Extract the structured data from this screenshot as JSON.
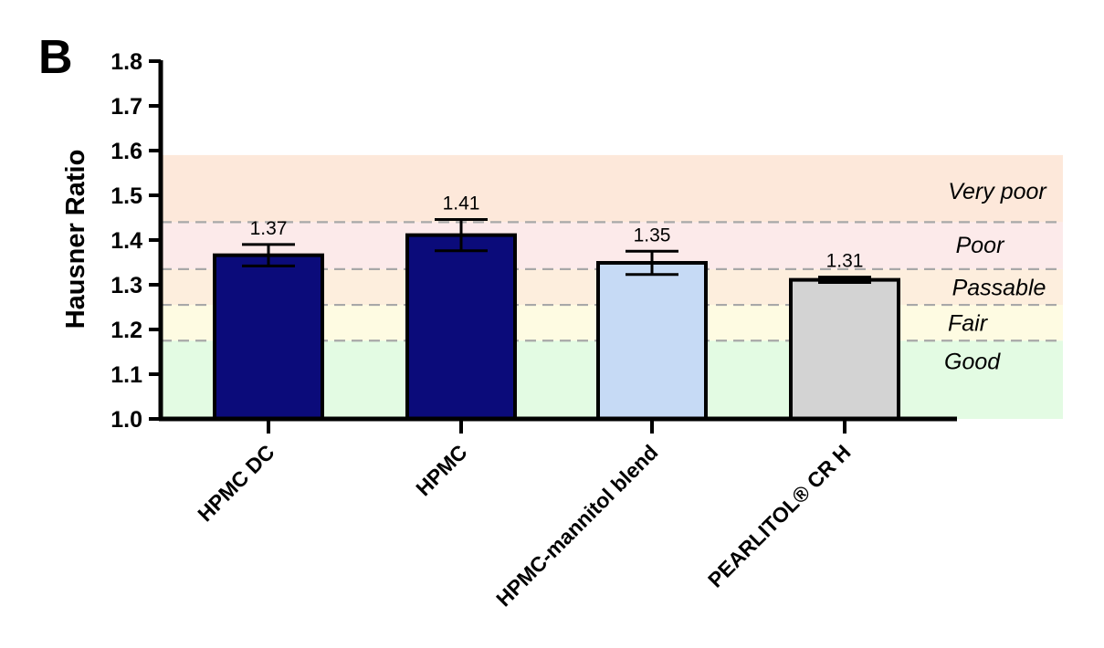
{
  "panel_label": "B",
  "chart_data": {
    "type": "bar",
    "ylabel": "Hausner Ratio",
    "xlabel": "",
    "ylim": [
      1.0,
      1.8
    ],
    "yticks": [
      1.0,
      1.1,
      1.2,
      1.3,
      1.4,
      1.5,
      1.6,
      1.7,
      1.8
    ],
    "ytick_labels": [
      "1.0",
      "1.1",
      "1.2",
      "1.3",
      "1.4",
      "1.5",
      "1.6",
      "1.7",
      "1.8"
    ],
    "categories": [
      "HPMC DC",
      "HPMC",
      "HPMC-mannitol blend",
      "PEARLITOL® CR H"
    ],
    "values": [
      1.366,
      1.411,
      1.349,
      1.311
    ],
    "errors": [
      0.024,
      0.035,
      0.026,
      0.006
    ],
    "data_labels": [
      "1.37",
      "1.41",
      "1.35",
      "1.31"
    ],
    "bar_colors": [
      "#0b0b7a",
      "#0b0b7a",
      "#c6daf5",
      "#d3d3d3"
    ],
    "zones": [
      {
        "label": "Good",
        "from": 1.0,
        "to": 1.175,
        "color": "#e3fbe3"
      },
      {
        "label": "Fair",
        "from": 1.175,
        "to": 1.255,
        "color": "#fefbe2"
      },
      {
        "label": "Passable",
        "from": 1.255,
        "to": 1.335,
        "color": "#fdeedd"
      },
      {
        "label": "Poor",
        "from": 1.335,
        "to": 1.44,
        "color": "#fceaea"
      },
      {
        "label": "Very poor",
        "from": 1.44,
        "to": 1.59,
        "color": "#fde8da"
      }
    ],
    "threshold_lines": [
      1.175,
      1.255,
      1.335,
      1.44
    ],
    "grid": false,
    "legend": "none"
  }
}
